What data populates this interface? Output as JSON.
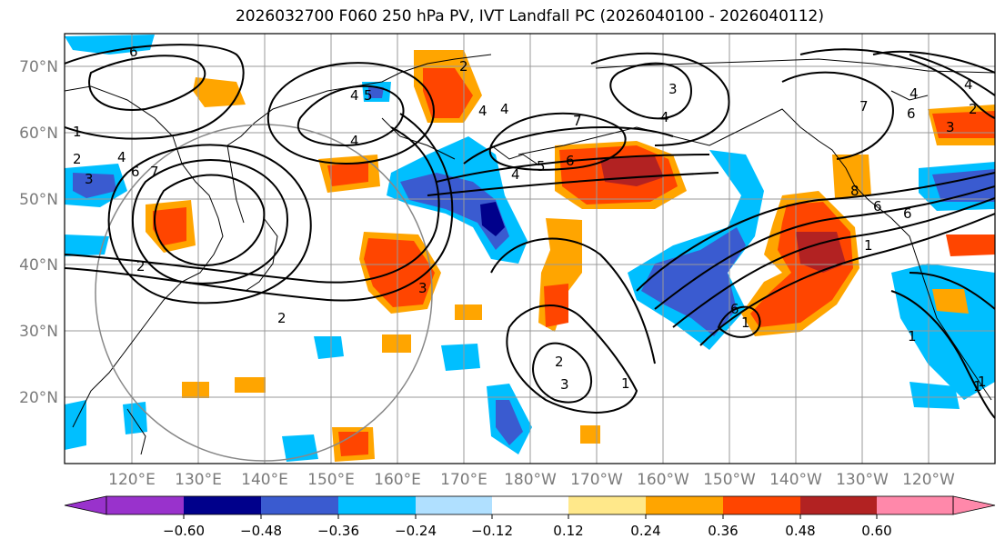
{
  "title": "2026032700 F060 250 hPa PV, IVT Landfall PC (2026040100 - 2026040112)",
  "lat_labels": [
    "70°N",
    "60°N",
    "50°N",
    "40°N",
    "30°N",
    "20°N"
  ],
  "lon_labels": [
    "120°E",
    "130°E",
    "140°E",
    "150°E",
    "160°E",
    "170°E",
    "180°W",
    "170°W",
    "160°W",
    "150°W",
    "140°W",
    "130°W",
    "120°W"
  ],
  "colorbar": {
    "ticks": [
      "−0.60",
      "−0.48",
      "−0.36",
      "−0.24",
      "−0.12",
      "0.12",
      "0.24",
      "0.36",
      "0.48",
      "0.60"
    ],
    "colors": [
      "#9932cc",
      "#00008b",
      "#3a5bd0",
      "#00bfff",
      "#b0e0ff",
      "#ffffff",
      "#ffe88a",
      "#ffa500",
      "#ff4500",
      "#b22222",
      "#ff88aa"
    ]
  },
  "contour_labels": [
    "6",
    "3",
    "6",
    "7",
    "4",
    "4",
    "4",
    "5",
    "4",
    "3",
    "7",
    "2",
    "4",
    "6",
    "4",
    "5",
    "6",
    "4",
    "4",
    "7",
    "6",
    "2",
    "1",
    "3",
    "2",
    "1",
    "2",
    "3",
    "2",
    "1",
    "6",
    "1",
    "1",
    "8",
    "6",
    "1",
    "1",
    "3",
    "2",
    "4"
  ]
}
